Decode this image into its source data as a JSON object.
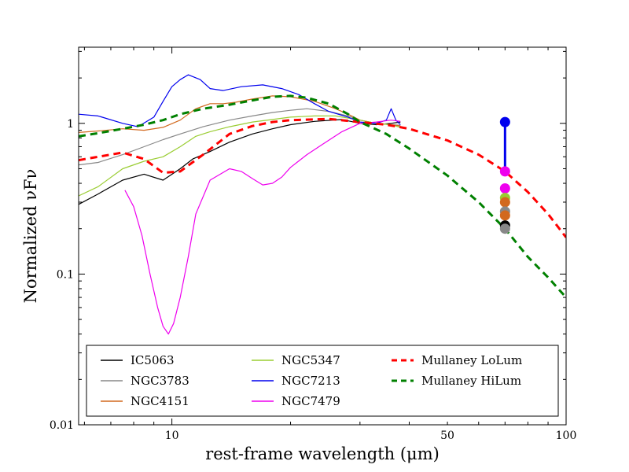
{
  "chart_data": {
    "type": "line",
    "xlabel": "rest-frame wavelength (μm)",
    "ylabel": "Normalized νFν",
    "xscale": "log",
    "yscale": "log",
    "xlim": [
      5.8,
      100
    ],
    "ylim": [
      0.01,
      3.2
    ],
    "xticks": [
      {
        "value": 10,
        "label": "10"
      },
      {
        "value": 50,
        "label": "50"
      },
      {
        "value": 100,
        "label": "100"
      }
    ],
    "yticks": [
      {
        "value": 0.01,
        "label": "0.01"
      },
      {
        "value": 0.1,
        "label": "0.1"
      },
      {
        "value": 1,
        "label": "1"
      }
    ],
    "legend_position": "bottom",
    "series": [
      {
        "name": "IC5063",
        "color": "#000000",
        "style": "solid",
        "x": [
          5.8,
          6.5,
          7.5,
          8.5,
          9.5,
          10.5,
          11.3,
          12.5,
          14,
          16,
          18,
          20,
          23,
          27,
          30,
          33,
          36,
          38
        ],
        "y": [
          0.29,
          0.34,
          0.42,
          0.46,
          0.42,
          0.5,
          0.58,
          0.65,
          0.75,
          0.85,
          0.92,
          0.98,
          1.03,
          1.06,
          1.0,
          0.98,
          1.0,
          1.02
        ]
      },
      {
        "name": "NGC3783",
        "color": "#888888",
        "style": "solid",
        "x": [
          5.8,
          6.5,
          7.5,
          8.5,
          9.5,
          10.5,
          12,
          14,
          16,
          18,
          20,
          22,
          25,
          28,
          30,
          33,
          36,
          38
        ],
        "y": [
          0.53,
          0.55,
          0.62,
          0.7,
          0.78,
          0.85,
          0.95,
          1.05,
          1.12,
          1.18,
          1.22,
          1.25,
          1.2,
          1.12,
          1.05,
          1.0,
          0.98,
          0.97
        ]
      },
      {
        "name": "NGC4151",
        "color": "#d2691e",
        "style": "solid",
        "x": [
          5.8,
          6.5,
          7.5,
          8.5,
          9.5,
          10.5,
          11.5,
          12.5,
          13.5,
          14.5,
          16,
          18,
          20,
          23,
          26,
          28,
          30,
          33,
          36,
          38
        ],
        "y": [
          0.87,
          0.89,
          0.92,
          0.9,
          0.94,
          1.05,
          1.25,
          1.35,
          1.35,
          1.38,
          1.45,
          1.52,
          1.5,
          1.4,
          1.25,
          1.15,
          1.05,
          1.0,
          0.98,
          0.96
        ]
      },
      {
        "name": "NGC5347",
        "color": "#9acd32",
        "style": "solid",
        "x": [
          5.8,
          6.5,
          7.5,
          8.5,
          9.5,
          10.5,
          11.5,
          12.5,
          14,
          16,
          18,
          20,
          23,
          26,
          30,
          33,
          36,
          38
        ],
        "y": [
          0.33,
          0.38,
          0.5,
          0.56,
          0.6,
          0.7,
          0.82,
          0.88,
          0.95,
          1.02,
          1.06,
          1.1,
          1.12,
          1.12,
          1.05,
          1.0,
          0.98,
          0.94
        ]
      },
      {
        "name": "NGC7213",
        "color": "#0000ee",
        "style": "solid",
        "x": [
          5.8,
          6.5,
          7.5,
          8.2,
          9.0,
          9.5,
          10.0,
          10.5,
          11.0,
          11.8,
          12.5,
          13.5,
          15,
          17,
          19,
          21,
          23,
          25,
          28,
          30,
          33,
          35,
          36,
          37,
          38
        ],
        "y": [
          1.15,
          1.12,
          1.0,
          0.95,
          1.1,
          1.4,
          1.75,
          1.95,
          2.1,
          1.95,
          1.7,
          1.65,
          1.75,
          1.8,
          1.7,
          1.55,
          1.35,
          1.2,
          1.1,
          1.02,
          1.0,
          1.05,
          1.25,
          1.05,
          0.98
        ]
      },
      {
        "name": "NGC7479",
        "color": "#ee00ee",
        "style": "solid",
        "x": [
          7.6,
          8.0,
          8.4,
          8.8,
          9.2,
          9.5,
          9.8,
          10.1,
          10.5,
          11.0,
          11.5,
          12.5,
          14,
          15,
          16,
          17,
          18,
          19,
          20,
          22,
          24,
          27,
          30,
          33,
          36,
          38
        ],
        "y": [
          0.36,
          0.28,
          0.18,
          0.1,
          0.06,
          0.045,
          0.04,
          0.047,
          0.07,
          0.13,
          0.25,
          0.42,
          0.5,
          0.48,
          0.43,
          0.39,
          0.4,
          0.44,
          0.51,
          0.62,
          0.72,
          0.88,
          1.0,
          1.02,
          1.05,
          1.03
        ]
      },
      {
        "name": "Mullaney LoLum",
        "color": "#ff0000",
        "style": "dashed",
        "x": [
          5.8,
          6.5,
          7.5,
          8.5,
          9.5,
          10.5,
          12,
          14,
          16,
          18,
          20,
          25,
          30,
          35,
          40,
          50,
          60,
          70,
          80,
          90,
          100
        ],
        "y": [
          0.57,
          0.6,
          0.64,
          0.58,
          0.47,
          0.48,
          0.62,
          0.85,
          0.96,
          1.02,
          1.05,
          1.07,
          1.02,
          0.98,
          0.92,
          0.77,
          0.62,
          0.48,
          0.35,
          0.25,
          0.175
        ]
      },
      {
        "name": "Mullaney HiLum",
        "color": "#008000",
        "style": "dashed",
        "x": [
          5.8,
          6.5,
          7.5,
          8.5,
          9.5,
          10.5,
          12,
          14,
          16,
          18,
          20,
          22,
          25,
          28,
          30,
          35,
          40,
          50,
          60,
          70,
          80,
          90,
          100
        ],
        "y": [
          0.82,
          0.86,
          0.92,
          0.98,
          1.05,
          1.15,
          1.25,
          1.33,
          1.42,
          1.5,
          1.52,
          1.48,
          1.35,
          1.15,
          1.02,
          0.85,
          0.68,
          0.45,
          0.3,
          0.2,
          0.13,
          0.095,
          0.07
        ]
      }
    ],
    "photometry": {
      "x": 70,
      "points": [
        {
          "name": "NGC7213",
          "color": "#0000ee",
          "y": 1.02
        },
        {
          "name": "NGC7479",
          "color": "#ee00ee",
          "y": 0.48
        },
        {
          "name": "NGC7479",
          "color": "#ee00ee",
          "y": 0.37
        },
        {
          "name": "NGC5347",
          "color": "#9acd32",
          "y": 0.32
        },
        {
          "name": "NGC4151",
          "color": "#d2691e",
          "y": 0.3
        },
        {
          "name": "NGC3783",
          "color": "#888888",
          "y": 0.26
        },
        {
          "name": "NGC4151",
          "color": "#d2691e",
          "y": 0.245
        },
        {
          "name": "IC5063",
          "color": "#000000",
          "y": 0.21
        },
        {
          "name": "NGC3783",
          "color": "#888888",
          "y": 0.2
        }
      ],
      "errorbar": {
        "color": "#0000ee",
        "y_low": 0.47,
        "y_high": 1.02
      }
    }
  }
}
